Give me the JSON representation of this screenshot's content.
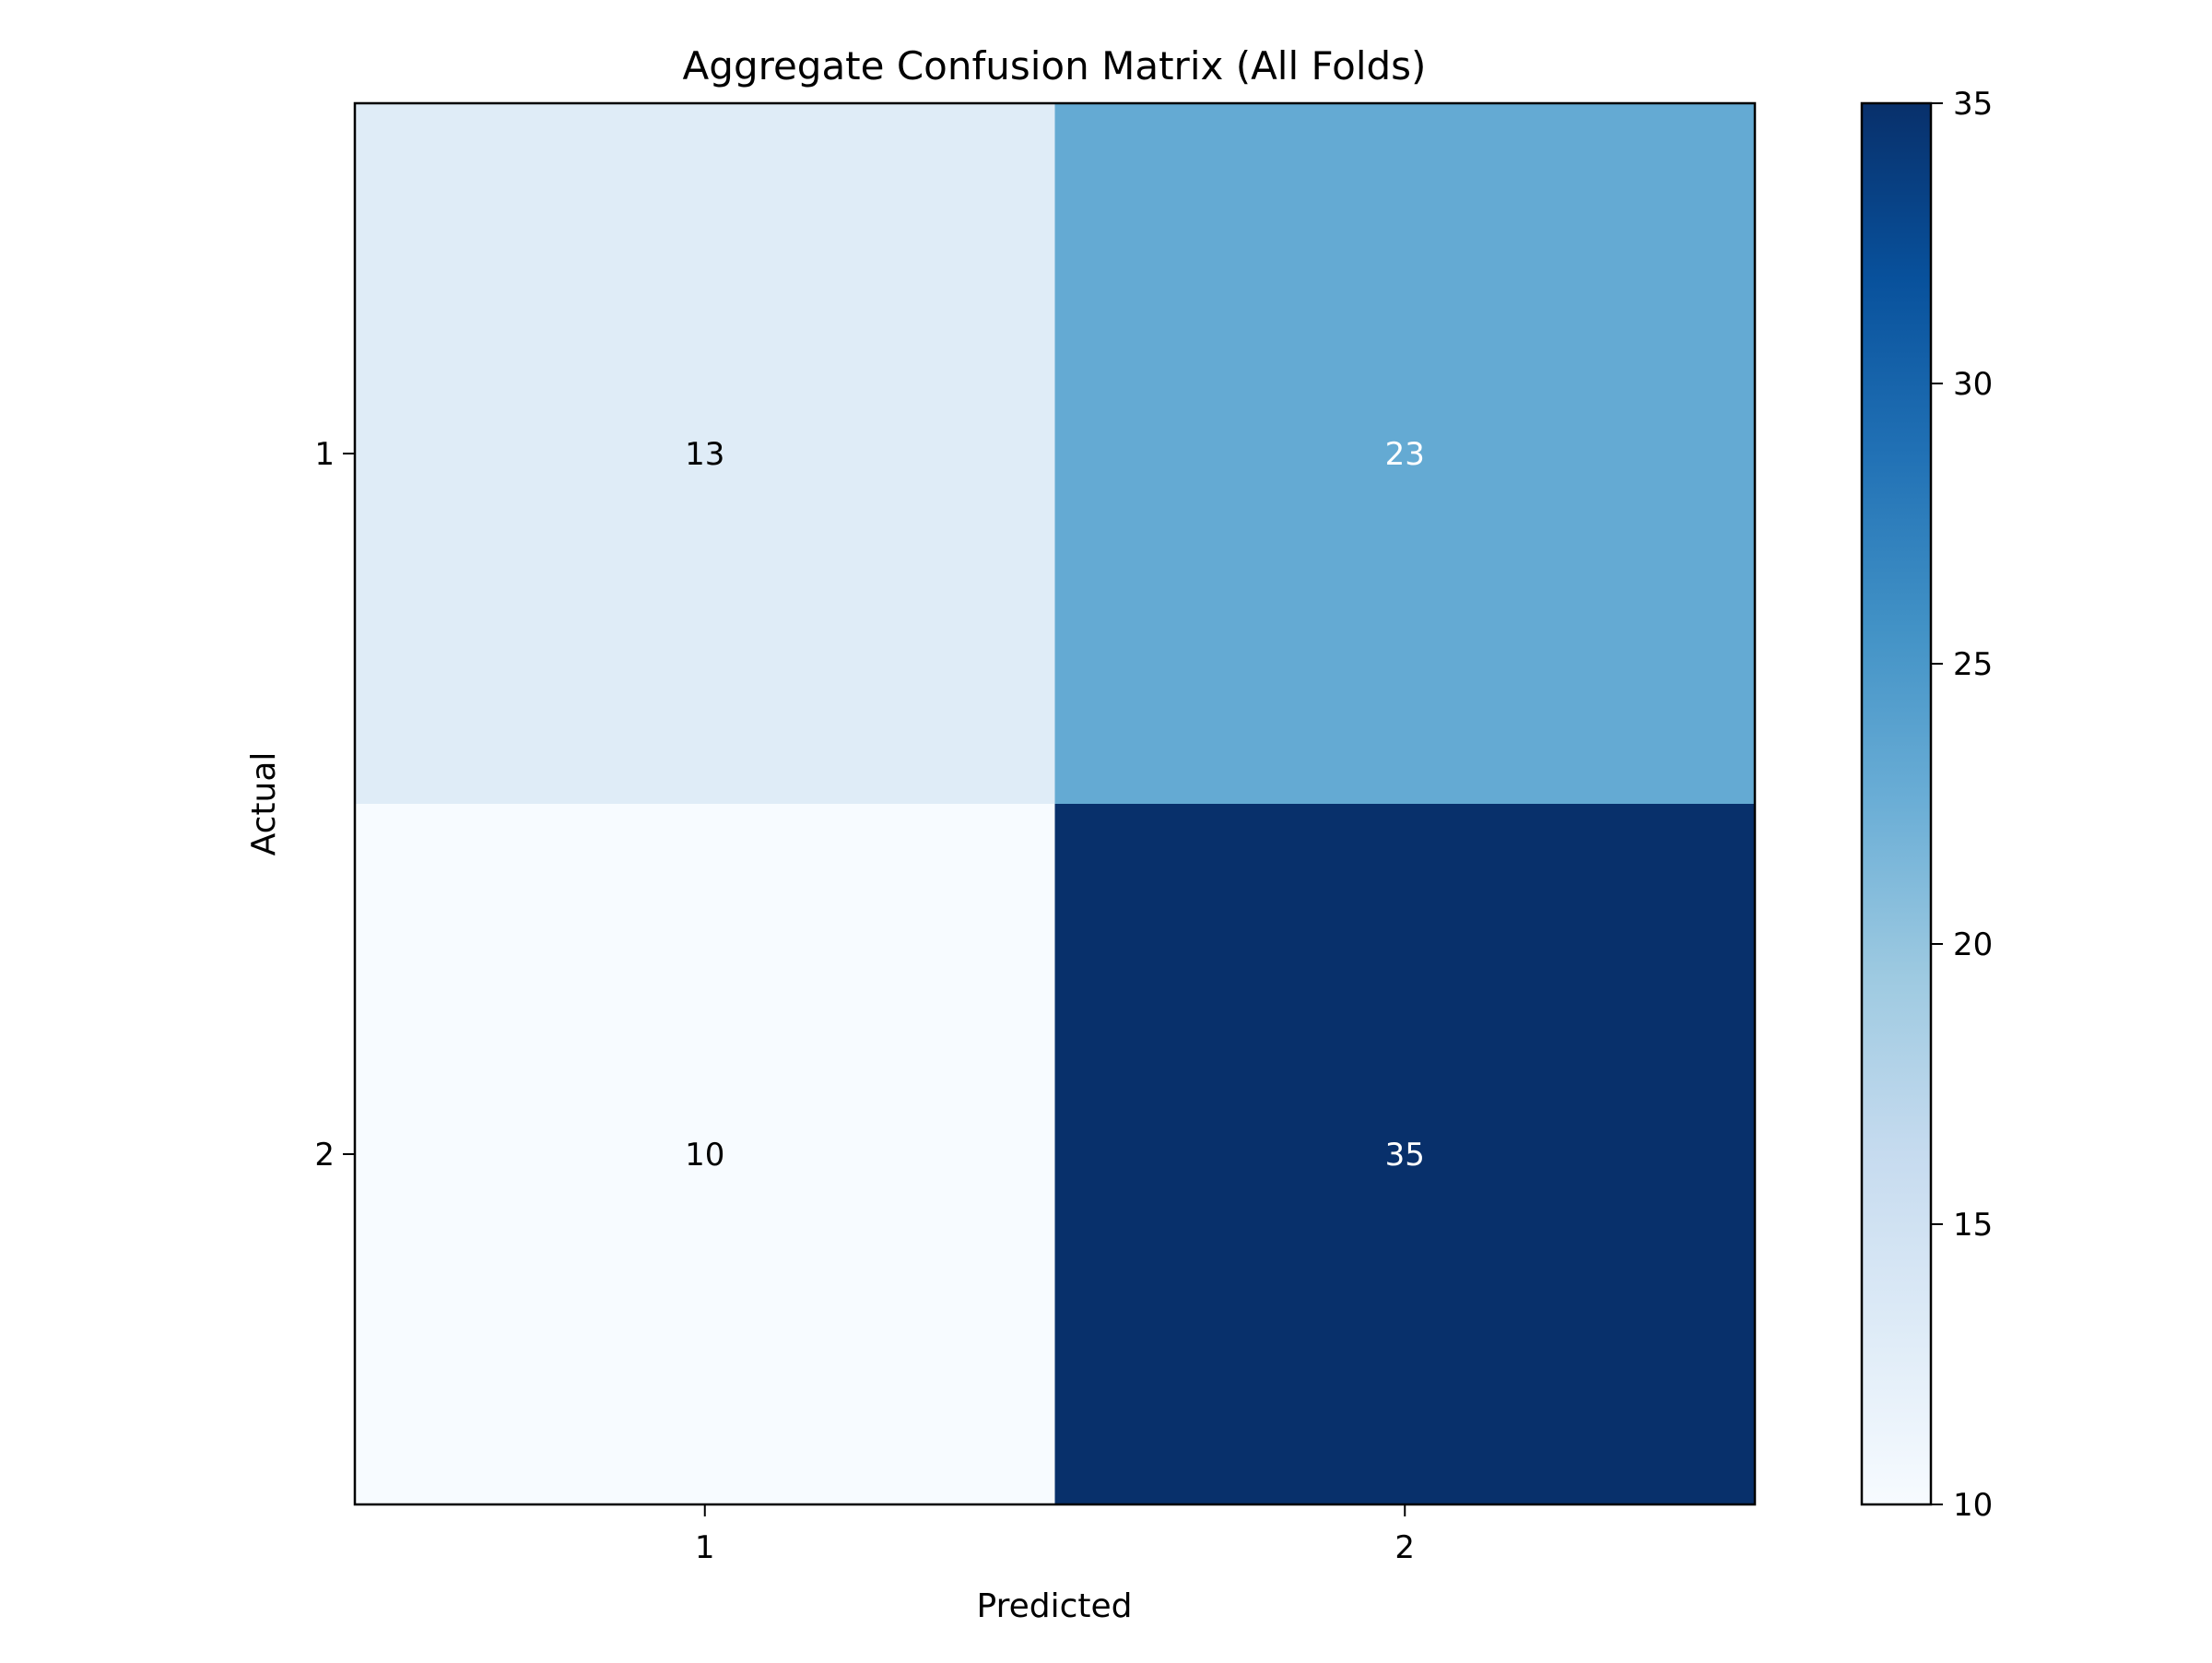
{
  "chart_data": {
    "type": "heatmap",
    "title": "Aggregate Confusion Matrix (All Folds)",
    "xlabel": "Predicted",
    "ylabel": "Actual",
    "x_categories": [
      "1",
      "2"
    ],
    "y_categories": [
      "1",
      "2"
    ],
    "values": [
      [
        13,
        23
      ],
      [
        10,
        35
      ]
    ],
    "colormap": "Blues",
    "colorbar": {
      "range": [
        10,
        35
      ],
      "ticks": [
        "10",
        "15",
        "20",
        "25",
        "30",
        "35"
      ]
    },
    "text_color_light": "#ffffff",
    "text_color_dark": "#000000"
  }
}
